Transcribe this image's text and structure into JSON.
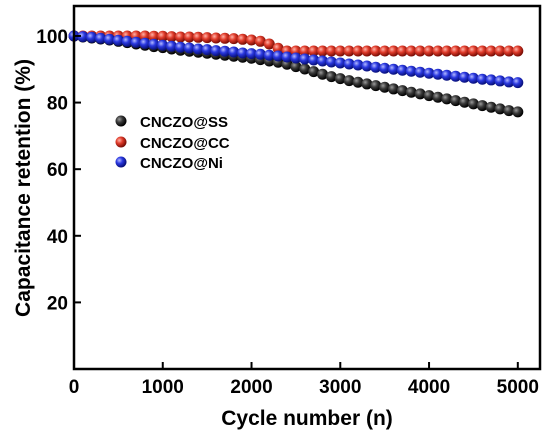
{
  "chart_data": {
    "type": "scatter",
    "xlabel": "Cycle number (n)",
    "ylabel": "Capacitance retention (%)",
    "xlim": [
      0,
      5250
    ],
    "ylim": [
      0,
      109
    ],
    "xticks": [
      "0",
      "1000",
      "2000",
      "3000",
      "4000",
      "5000"
    ],
    "yticks": [
      "20",
      "40",
      "60",
      "80",
      "100"
    ],
    "xtick_values": [
      0,
      1000,
      2000,
      3000,
      4000,
      5000
    ],
    "ytick_values": [
      20,
      40,
      60,
      80,
      100
    ],
    "grid": false,
    "legend_position": "middle-left",
    "series": [
      {
        "name": "CNCZO@SS",
        "color": "#111111",
        "points": [
          [
            0,
            100
          ],
          [
            100,
            99.7
          ],
          [
            200,
            99.4
          ],
          [
            300,
            99.1
          ],
          [
            400,
            98.8
          ],
          [
            500,
            98.4
          ],
          [
            600,
            98.0
          ],
          [
            700,
            97.6
          ],
          [
            800,
            97.2
          ],
          [
            900,
            96.8
          ],
          [
            1000,
            96.5
          ],
          [
            1100,
            96.1
          ],
          [
            1200,
            95.7
          ],
          [
            1300,
            95.4
          ],
          [
            1400,
            95.1
          ],
          [
            1500,
            94.8
          ],
          [
            1600,
            94.5
          ],
          [
            1700,
            94.2
          ],
          [
            1800,
            93.9
          ],
          [
            1900,
            93.6
          ],
          [
            2000,
            93.3
          ],
          [
            2100,
            92.9
          ],
          [
            2200,
            92.5
          ],
          [
            2300,
            92.1
          ],
          [
            2400,
            91.5
          ],
          [
            2500,
            90.8
          ],
          [
            2600,
            90.1
          ],
          [
            2700,
            89.3
          ],
          [
            2800,
            88.5
          ],
          [
            2900,
            87.8
          ],
          [
            3000,
            87.2
          ],
          [
            3100,
            86.6
          ],
          [
            3200,
            86.1
          ],
          [
            3300,
            85.6
          ],
          [
            3400,
            85.1
          ],
          [
            3500,
            84.6
          ],
          [
            3600,
            84.1
          ],
          [
            3700,
            83.6
          ],
          [
            3800,
            83.1
          ],
          [
            3900,
            82.6
          ],
          [
            4000,
            82.1
          ],
          [
            4100,
            81.6
          ],
          [
            4200,
            81.1
          ],
          [
            4300,
            80.6
          ],
          [
            4400,
            80.1
          ],
          [
            4500,
            79.6
          ],
          [
            4600,
            79.1
          ],
          [
            4700,
            78.6
          ],
          [
            4800,
            78.1
          ],
          [
            4900,
            77.6
          ],
          [
            5000,
            77.2
          ]
        ]
      },
      {
        "name": "CNCZO@CC",
        "color": "#cc2a1e",
        "points": [
          [
            0,
            100
          ],
          [
            100,
            100
          ],
          [
            200,
            100
          ],
          [
            300,
            100
          ],
          [
            400,
            100
          ],
          [
            500,
            100
          ],
          [
            600,
            100
          ],
          [
            700,
            100
          ],
          [
            800,
            100
          ],
          [
            900,
            99.9
          ],
          [
            1000,
            99.9
          ],
          [
            1100,
            99.8
          ],
          [
            1200,
            99.7
          ],
          [
            1300,
            99.7
          ],
          [
            1400,
            99.6
          ],
          [
            1500,
            99.5
          ],
          [
            1600,
            99.4
          ],
          [
            1700,
            99.3
          ],
          [
            1800,
            99.2
          ],
          [
            1900,
            99.0
          ],
          [
            2000,
            98.8
          ],
          [
            2100,
            98.4
          ],
          [
            2200,
            97.6
          ],
          [
            2300,
            96.3
          ],
          [
            2400,
            95.5
          ],
          [
            2500,
            95.5
          ],
          [
            2600,
            95.5
          ],
          [
            2700,
            95.5
          ],
          [
            2800,
            95.5
          ],
          [
            2900,
            95.5
          ],
          [
            3000,
            95.5
          ],
          [
            3100,
            95.5
          ],
          [
            3200,
            95.5
          ],
          [
            3300,
            95.5
          ],
          [
            3400,
            95.5
          ],
          [
            3500,
            95.5
          ],
          [
            3600,
            95.5
          ],
          [
            3700,
            95.5
          ],
          [
            3800,
            95.5
          ],
          [
            3900,
            95.5
          ],
          [
            4000,
            95.5
          ],
          [
            4100,
            95.5
          ],
          [
            4200,
            95.5
          ],
          [
            4300,
            95.5
          ],
          [
            4400,
            95.5
          ],
          [
            4500,
            95.5
          ],
          [
            4600,
            95.5
          ],
          [
            4700,
            95.5
          ],
          [
            4800,
            95.5
          ],
          [
            4900,
            95.5
          ],
          [
            5000,
            95.5
          ]
        ]
      },
      {
        "name": "CNCZO@Ni",
        "color": "#1f2fd6",
        "points": [
          [
            0,
            100
          ],
          [
            100,
            99.8
          ],
          [
            200,
            99.6
          ],
          [
            300,
            99.3
          ],
          [
            400,
            99.0
          ],
          [
            500,
            98.7
          ],
          [
            600,
            98.4
          ],
          [
            700,
            98.1
          ],
          [
            800,
            97.8
          ],
          [
            900,
            97.5
          ],
          [
            1000,
            97.2
          ],
          [
            1100,
            96.9
          ],
          [
            1200,
            96.6
          ],
          [
            1300,
            96.4
          ],
          [
            1400,
            96.1
          ],
          [
            1500,
            95.9
          ],
          [
            1600,
            95.6
          ],
          [
            1700,
            95.4
          ],
          [
            1800,
            95.2
          ],
          [
            1900,
            94.9
          ],
          [
            2000,
            94.7
          ],
          [
            2100,
            94.5
          ],
          [
            2200,
            94.2
          ],
          [
            2300,
            94.0
          ],
          [
            2400,
            93.7
          ],
          [
            2500,
            93.4
          ],
          [
            2600,
            93.1
          ],
          [
            2700,
            92.8
          ],
          [
            2800,
            92.5
          ],
          [
            2900,
            92.2
          ],
          [
            3000,
            91.9
          ],
          [
            3100,
            91.6
          ],
          [
            3200,
            91.3
          ],
          [
            3300,
            91.0
          ],
          [
            3400,
            90.6
          ],
          [
            3500,
            90.3
          ],
          [
            3600,
            90.0
          ],
          [
            3700,
            89.7
          ],
          [
            3800,
            89.4
          ],
          [
            3900,
            89.1
          ],
          [
            4000,
            88.8
          ],
          [
            4100,
            88.5
          ],
          [
            4200,
            88.2
          ],
          [
            4300,
            87.9
          ],
          [
            4400,
            87.6
          ],
          [
            4500,
            87.3
          ],
          [
            4600,
            87.0
          ],
          [
            4700,
            86.8
          ],
          [
            4800,
            86.5
          ],
          [
            4900,
            86.2
          ],
          [
            5000,
            86.0
          ]
        ]
      }
    ]
  }
}
